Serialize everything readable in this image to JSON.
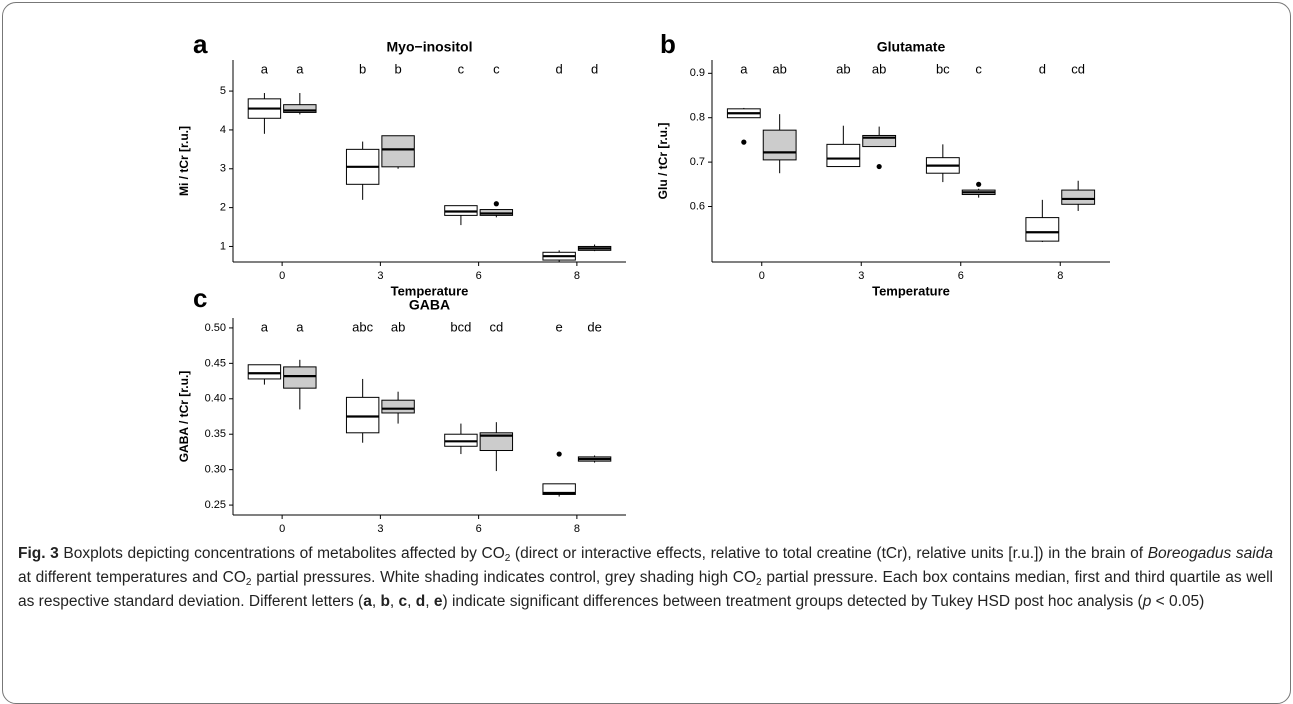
{
  "chart_data": [
    {
      "type": "box",
      "panel_label": "a",
      "title": "Myo−inositol",
      "xlabel": "Temperature",
      "ylabel": "Mi / tCr [r.u.]",
      "categories": [
        "0",
        "3",
        "6",
        "8"
      ],
      "ylim": [
        0.6,
        5.8
      ],
      "yticks": [
        1,
        2,
        3,
        4,
        5
      ],
      "series": [
        {
          "color": "#ffffff",
          "letters": [
            "a",
            "b",
            "c",
            "d"
          ],
          "boxes": [
            {
              "low": 3.9,
              "q1": 4.3,
              "median": 4.55,
              "q3": 4.8,
              "high": 4.95
            },
            {
              "low": 2.2,
              "q1": 2.6,
              "median": 3.05,
              "q3": 3.5,
              "high": 3.7
            },
            {
              "low": 1.55,
              "q1": 1.8,
              "median": 1.9,
              "q3": 2.05,
              "high": 2.05
            },
            {
              "low": 0.6,
              "q1": 0.65,
              "median": 0.75,
              "q3": 0.85,
              "high": 0.9
            }
          ]
        },
        {
          "color": "#cccccc",
          "letters": [
            "a",
            "b",
            "c",
            "d"
          ],
          "boxes": [
            {
              "low": 4.4,
              "q1": 4.45,
              "median": 4.5,
              "q3": 4.65,
              "high": 4.95
            },
            {
              "low": 3.0,
              "q1": 3.05,
              "median": 3.5,
              "q3": 3.85,
              "high": 3.85
            },
            {
              "low": 1.75,
              "q1": 1.8,
              "median": 1.85,
              "q3": 1.95,
              "high": 1.95,
              "outliers": [
                2.1
              ]
            },
            {
              "low": 0.88,
              "q1": 0.9,
              "median": 0.95,
              "q3": 1.0,
              "high": 1.05
            }
          ]
        }
      ]
    },
    {
      "type": "box",
      "panel_label": "b",
      "title": "Glutamate",
      "xlabel": "Temperature",
      "ylabel": "Glu / tCr [r.u.]",
      "categories": [
        "0",
        "3",
        "6",
        "8"
      ],
      "ylim": [
        0.475,
        0.93
      ],
      "yticks": [
        0.6,
        0.7,
        0.8,
        0.9
      ],
      "series": [
        {
          "color": "#ffffff",
          "letters": [
            "a",
            "ab",
            "bc",
            "d"
          ],
          "boxes": [
            {
              "low": 0.8,
              "q1": 0.8,
              "median": 0.81,
              "q3": 0.82,
              "high": 0.822,
              "outliers": [
                0.745
              ]
            },
            {
              "low": 0.69,
              "q1": 0.69,
              "median": 0.708,
              "q3": 0.74,
              "high": 0.782
            },
            {
              "low": 0.655,
              "q1": 0.675,
              "median": 0.692,
              "q3": 0.71,
              "high": 0.74
            },
            {
              "low": 0.52,
              "q1": 0.522,
              "median": 0.542,
              "q3": 0.575,
              "high": 0.615
            }
          ]
        },
        {
          "color": "#cccccc",
          "letters": [
            "ab",
            "ab",
            "c",
            "cd"
          ],
          "boxes": [
            {
              "low": 0.675,
              "q1": 0.705,
              "median": 0.722,
              "q3": 0.772,
              "high": 0.808
            },
            {
              "low": 0.735,
              "q1": 0.735,
              "median": 0.755,
              "q3": 0.76,
              "high": 0.78,
              "outliers": [
                0.69
              ]
            },
            {
              "low": 0.62,
              "q1": 0.627,
              "median": 0.632,
              "q3": 0.637,
              "high": 0.64,
              "outliers": [
                0.65
              ]
            },
            {
              "low": 0.59,
              "q1": 0.605,
              "median": 0.617,
              "q3": 0.637,
              "high": 0.658
            }
          ]
        }
      ]
    },
    {
      "type": "box",
      "panel_label": "c",
      "title": "GABA",
      "xlabel": "Temperature",
      "ylabel": "GABA / tCr [r.u.]",
      "categories": [
        "0",
        "3",
        "6",
        "8"
      ],
      "ylim": [
        0.236,
        0.514
      ],
      "yticks": [
        0.25,
        {
          "value": 0.3,
          "label": "0.30"
        },
        0.35,
        {
          "value": 0.4,
          "label": "0.40"
        },
        0.45,
        {
          "value": 0.5,
          "label": "0.50"
        }
      ],
      "series": [
        {
          "color": "#ffffff",
          "letters": [
            "a",
            "abc",
            "bcd",
            "e"
          ],
          "boxes": [
            {
              "low": 0.42,
              "q1": 0.428,
              "median": 0.436,
              "q3": 0.448,
              "high": 0.448
            },
            {
              "low": 0.338,
              "q1": 0.352,
              "median": 0.375,
              "q3": 0.402,
              "high": 0.428
            },
            {
              "low": 0.322,
              "q1": 0.333,
              "median": 0.34,
              "q3": 0.35,
              "high": 0.365
            },
            {
              "low": 0.262,
              "q1": 0.265,
              "median": 0.267,
              "q3": 0.28,
              "high": 0.28,
              "outliers": [
                0.322
              ]
            }
          ]
        },
        {
          "color": "#cccccc",
          "letters": [
            "a",
            "ab",
            "cd",
            "de"
          ],
          "boxes": [
            {
              "low": 0.385,
              "q1": 0.415,
              "median": 0.432,
              "q3": 0.445,
              "high": 0.455
            },
            {
              "low": 0.365,
              "q1": 0.38,
              "median": 0.386,
              "q3": 0.398,
              "high": 0.41
            },
            {
              "low": 0.298,
              "q1": 0.327,
              "median": 0.348,
              "q3": 0.352,
              "high": 0.367
            },
            {
              "low": 0.31,
              "q1": 0.312,
              "median": 0.315,
              "q3": 0.318,
              "high": 0.32
            }
          ]
        }
      ]
    }
  ],
  "caption": [
    {
      "text": "Fig. 3",
      "style": "b"
    },
    {
      "text": " Boxplots depicting concentrations of metabolites affected by CO"
    },
    {
      "text": "2",
      "style": "sub"
    },
    {
      "text": " (direct or interactive effects, relative to total creatine (tCr), relative units [r.u.]) in the brain of "
    },
    {
      "text": "Boreogadus saida",
      "style": "i"
    },
    {
      "text": " at different temperatures and CO"
    },
    {
      "text": "2",
      "style": "sub"
    },
    {
      "text": " partial pressures. White shading indicates control, grey shading high CO"
    },
    {
      "text": "2",
      "style": "sub"
    },
    {
      "text": " partial pressure. Each box contains median, first and third quartile as well as respective standard deviation. Different letters ("
    },
    {
      "text": "a",
      "style": "b"
    },
    {
      "text": ", "
    },
    {
      "text": "b",
      "style": "b"
    },
    {
      "text": ", "
    },
    {
      "text": "c",
      "style": "b"
    },
    {
      "text": ", "
    },
    {
      "text": "d",
      "style": "b"
    },
    {
      "text": ", "
    },
    {
      "text": "e",
      "style": "b"
    },
    {
      "text": ") indicate significant differences between treatment groups detected by Tukey HSD post hoc analysis ("
    },
    {
      "text": "p",
      "style": "i"
    },
    {
      "text": " < 0.05)"
    }
  ]
}
